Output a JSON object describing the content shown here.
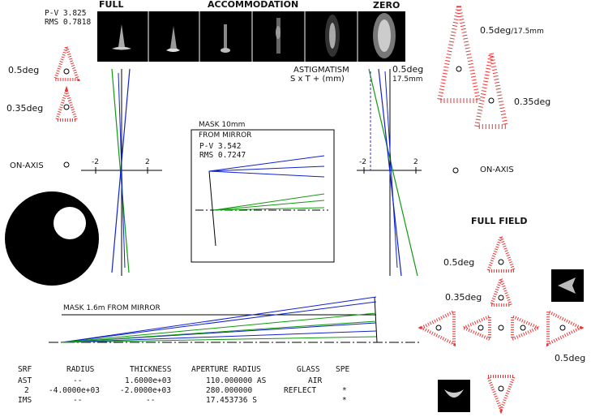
{
  "top_left_stats": {
    "pv": "P-V 3.825",
    "rms": "RMS 0.7818"
  },
  "strip": {
    "full": "FULL",
    "accommodation": "ACCOMMODATION",
    "zero": "ZERO"
  },
  "left_fields": {
    "f1": "0.5deg",
    "f2": "0.35deg",
    "f3": "ON-AXIS"
  },
  "left_axis": {
    "neg": "-2",
    "pos": "2"
  },
  "mask_box": {
    "title1": "MASK 10mm",
    "title2": "FROM MIRROR",
    "pv": "P-V 3.542",
    "rms": "RMS 0.7247"
  },
  "astig": {
    "title": "ASTIGMATISM",
    "subtitle": "S x T + (mm)",
    "field": "0.5deg",
    "field2": "17.5mm",
    "neg": "-2",
    "pos": "2"
  },
  "right_fields": {
    "top": "0.5deg",
    "top_suffix": "/17.5mm",
    "second": "0.35deg",
    "onaxis": "ON-AXIS"
  },
  "full_field": {
    "title": "FULL FIELD",
    "a": "0.5deg",
    "b": "0.35deg",
    "c": "0.5deg"
  },
  "layout": {
    "mask_label": "MASK 1.6m FROM MIRROR"
  },
  "table": {
    "headers": [
      "SRF",
      "RADIUS",
      "THICKNESS",
      "APERTURE RADIUS",
      "GLASS",
      "SPE"
    ],
    "rows": [
      [
        "AST",
        "--",
        "1.6000e+03",
        "110.000000 AS",
        "AIR",
        ""
      ],
      [
        "2",
        "-4.0000e+03",
        "-2.0000e+03",
        "280.000000",
        "REFLECT",
        "*"
      ],
      [
        "IMS",
        "--",
        "--",
        "17.453736 S",
        "",
        "*"
      ]
    ]
  },
  "colors": {
    "red": "#dd1111",
    "blue": "#1122cc",
    "green": "#119911"
  }
}
